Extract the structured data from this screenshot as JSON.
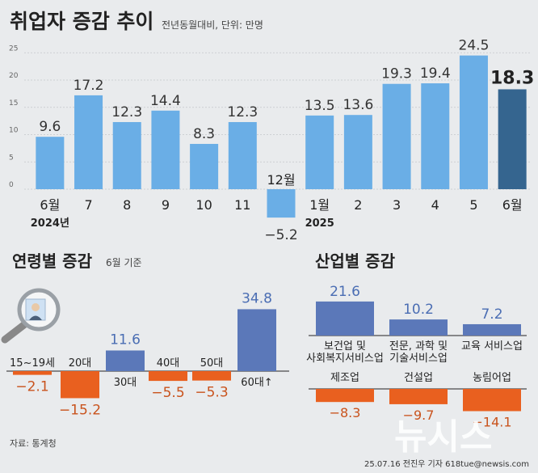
{
  "header": {
    "title": "취업자 증감 추이",
    "subtitle": "전년동월대비, 단위: 만명"
  },
  "chart_data": [
    {
      "type": "bar",
      "title": "취업자 증감 추이",
      "subtitle": "전년동월대비, 단위: 만명",
      "categories": [
        "6월",
        "7",
        "8",
        "9",
        "10",
        "11",
        "12월",
        "1월",
        "2",
        "3",
        "4",
        "5",
        "6월"
      ],
      "category_years": [
        "2024년",
        "",
        "",
        "",
        "",
        "",
        "",
        "2025",
        "",
        "",
        "",
        "",
        ""
      ],
      "values": [
        9.6,
        17.2,
        12.3,
        14.4,
        8.3,
        12.3,
        -5.2,
        13.5,
        13.6,
        19.3,
        19.4,
        24.5,
        18.3
      ],
      "value_labels": [
        "9.6",
        "17.2",
        "12.3",
        "14.4",
        "8.3",
        "12.3",
        "−5.2",
        "13.5",
        "13.6",
        "19.3",
        "19.4",
        "24.5",
        "18.3"
      ],
      "highlight_index": 12,
      "yticks": [
        0,
        5,
        10,
        15,
        20,
        25
      ],
      "ylim": [
        -7,
        25
      ],
      "colors": {
        "bar": "#6aaee6",
        "highlight": "#35658f"
      }
    },
    {
      "type": "bar",
      "title": "연령별 증감",
      "subtitle": "6월 기준",
      "categories": [
        "15~19세",
        "20대",
        "30대",
        "40대",
        "50대",
        "60대↑"
      ],
      "values": [
        -2.1,
        -15.2,
        11.6,
        -5.5,
        -5.3,
        34.8
      ],
      "value_labels": [
        "−2.1",
        "−15.2",
        "11.6",
        "−5.5",
        "−5.3",
        "34.8"
      ],
      "colors": {
        "positive": "#5b78b9",
        "negative": "#e9601f"
      }
    },
    {
      "type": "bar",
      "title": "산업별 증감",
      "categories": [
        "보건업 및 사회복지서비스업",
        "전문, 과학 및 기술서비스업",
        "교육 서비스업",
        "제조업",
        "건설업",
        "농림어업"
      ],
      "category_lines": [
        [
          "보건업 및",
          "사회복지서비스업"
        ],
        [
          "전문, 과학 및",
          "기술서비스업"
        ],
        [
          "교육 서비스업"
        ],
        [
          "제조업"
        ],
        [
          "건설업"
        ],
        [
          "농림어업"
        ]
      ],
      "values": [
        21.6,
        10.2,
        7.2,
        -8.3,
        -9.7,
        -14.1
      ],
      "value_labels": [
        "21.6",
        "10.2",
        "7.2",
        "−8.3",
        "−9.7",
        "−14.1"
      ],
      "colors": {
        "positive": "#5b78b9",
        "negative": "#e9601f"
      }
    }
  ],
  "footer": {
    "source": "자료: 통계청",
    "credit": "25.07.16 전진우 기자 618tue@newsis.com",
    "watermark": "뉴시스"
  },
  "illustration": {
    "icon": "magnifier-icon"
  }
}
